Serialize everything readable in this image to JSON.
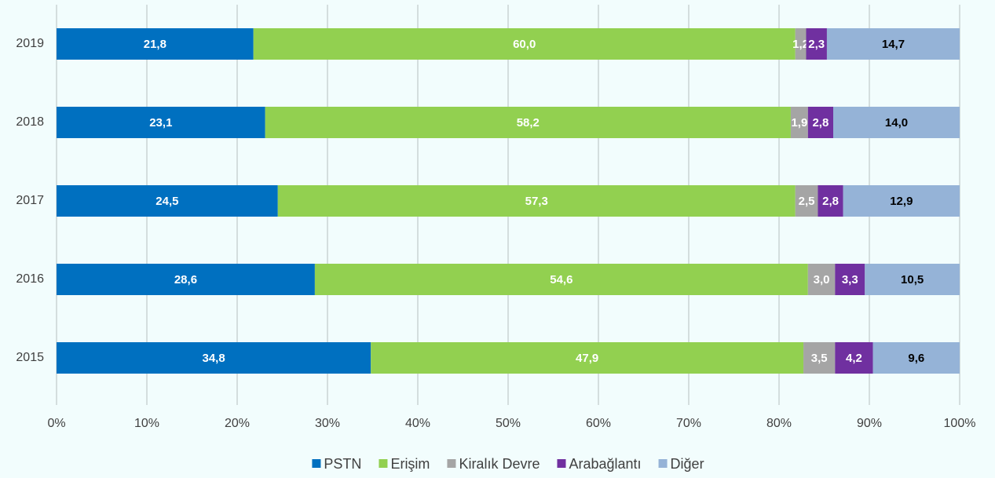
{
  "chart_data": {
    "type": "stacked_bar_horizontal",
    "categories": [
      "2019",
      "2018",
      "2017",
      "2016",
      "2015"
    ],
    "series": [
      {
        "name": "PSTN",
        "color": "#0070c0",
        "label_color": "#ffffff",
        "values": [
          21.8,
          23.1,
          24.5,
          28.6,
          34.8
        ],
        "value_labels": [
          "21,8",
          "23,1",
          "24,5",
          "28,6",
          "34,8"
        ]
      },
      {
        "name": "Erişim",
        "color": "#92d050",
        "label_color": "#ffffff",
        "values": [
          60.0,
          58.2,
          57.3,
          54.6,
          47.9
        ],
        "value_labels": [
          "60,0",
          "58,2",
          "57,3",
          "54,6",
          "47,9"
        ]
      },
      {
        "name": "Kiralık Devre",
        "color": "#a5a5a5",
        "label_color": "#ffffff",
        "values": [
          1.2,
          1.9,
          2.5,
          3.0,
          3.5
        ],
        "value_labels": [
          "1,2",
          "1,9",
          "2,5",
          "3,0",
          "3,5"
        ]
      },
      {
        "name": "Arabağlantı",
        "color": "#7030a0",
        "label_color": "#ffffff",
        "values": [
          2.3,
          2.8,
          2.8,
          3.3,
          4.2
        ],
        "value_labels": [
          "2,3",
          "2,8",
          "2,8",
          "3,3",
          "4,2"
        ]
      },
      {
        "name": "Diğer",
        "color": "#95b3d7",
        "label_color": "#000000",
        "values": [
          14.7,
          14.0,
          12.9,
          10.5,
          9.6
        ],
        "value_labels": [
          "14,7",
          "14,0",
          "12,9",
          "10,5",
          "9,6"
        ]
      }
    ],
    "xlim": [
      0,
      100
    ],
    "xticks": [
      {
        "value": 0,
        "label": "0%"
      },
      {
        "value": 10,
        "label": "10%"
      },
      {
        "value": 20,
        "label": "20%"
      },
      {
        "value": 30,
        "label": "30%"
      },
      {
        "value": 40,
        "label": "40%"
      },
      {
        "value": 50,
        "label": "50%"
      },
      {
        "value": 60,
        "label": "60%"
      },
      {
        "value": 70,
        "label": "70%"
      },
      {
        "value": 80,
        "label": "80%"
      },
      {
        "value": 90,
        "label": "90%"
      },
      {
        "value": 100,
        "label": "100%"
      }
    ],
    "grid": true,
    "legend": "bottom"
  }
}
